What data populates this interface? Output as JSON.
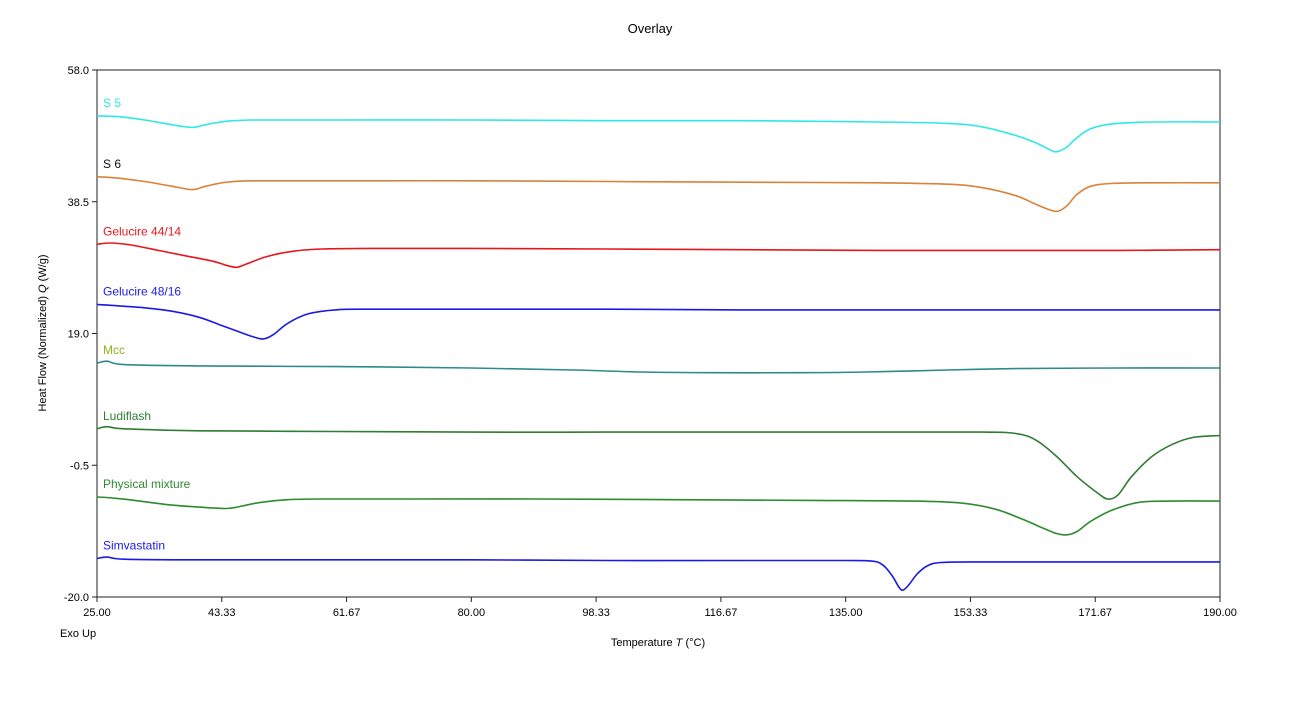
{
  "chart_data": {
    "type": "line",
    "title": "Overlay",
    "xlabel": "Temperature",
    "xlabel_symbol": "T",
    "xlabel_unit": "(°C)",
    "ylabel": "Heat Flow (Normalized)",
    "ylabel_symbol": "Q",
    "ylabel_unit": "(W/g)",
    "corner_note": "Exo Up",
    "xlim": [
      25.0,
      190.0
    ],
    "ylim": [
      -20.0,
      58.0
    ],
    "x_ticks": [
      "25.00",
      "43.33",
      "61.67",
      "80.00",
      "98.33",
      "116.67",
      "135.00",
      "153.33",
      "171.67",
      "190.00"
    ],
    "y_ticks": [
      "58.0",
      "38.5",
      "19.0",
      "-0.5",
      "-20.0"
    ],
    "grid": false,
    "legend": "inline labels",
    "series": [
      {
        "name": "S 5",
        "color": "#2ee8e8",
        "points": [
          [
            25,
            51.2
          ],
          [
            28,
            51.1
          ],
          [
            32,
            50.6
          ],
          [
            36,
            49.9
          ],
          [
            39,
            49.5
          ],
          [
            41,
            49.9
          ],
          [
            44,
            50.4
          ],
          [
            48,
            50.6
          ],
          [
            60,
            50.6
          ],
          [
            80,
            50.6
          ],
          [
            100,
            50.5
          ],
          [
            120,
            50.5
          ],
          [
            140,
            50.3
          ],
          [
            150,
            50.1
          ],
          [
            155,
            49.6
          ],
          [
            160,
            48.3
          ],
          [
            163,
            47.2
          ],
          [
            165,
            46.2
          ],
          [
            166,
            45.9
          ],
          [
            167.5,
            46.6
          ],
          [
            169,
            48.0
          ],
          [
            171,
            49.3
          ],
          [
            174,
            50.0
          ],
          [
            180,
            50.3
          ],
          [
            190,
            50.3
          ]
        ]
      },
      {
        "name": "S 6",
        "color": "#d9823a",
        "points": [
          [
            25,
            42.2
          ],
          [
            28,
            42.0
          ],
          [
            32,
            41.5
          ],
          [
            36,
            40.8
          ],
          [
            39,
            40.3
          ],
          [
            41,
            40.8
          ],
          [
            44,
            41.4
          ],
          [
            48,
            41.6
          ],
          [
            60,
            41.6
          ],
          [
            80,
            41.6
          ],
          [
            100,
            41.5
          ],
          [
            120,
            41.4
          ],
          [
            140,
            41.3
          ],
          [
            150,
            41.1
          ],
          [
            155,
            40.6
          ],
          [
            160,
            39.4
          ],
          [
            163,
            38.1
          ],
          [
            165,
            37.3
          ],
          [
            166.2,
            37.1
          ],
          [
            167.5,
            37.9
          ],
          [
            169,
            39.6
          ],
          [
            171,
            40.8
          ],
          [
            174,
            41.2
          ],
          [
            180,
            41.3
          ],
          [
            190,
            41.3
          ]
        ]
      },
      {
        "name": "Gelucire 44/14",
        "color": "#e8161b",
        "points": [
          [
            25,
            32.2
          ],
          [
            27,
            32.4
          ],
          [
            30,
            32.1
          ],
          [
            34,
            31.3
          ],
          [
            38,
            30.5
          ],
          [
            42,
            29.7
          ],
          [
            44,
            29.1
          ],
          [
            45.5,
            28.8
          ],
          [
            47,
            29.3
          ],
          [
            50,
            30.4
          ],
          [
            54,
            31.2
          ],
          [
            58,
            31.5
          ],
          [
            65,
            31.6
          ],
          [
            80,
            31.6
          ],
          [
            100,
            31.5
          ],
          [
            120,
            31.4
          ],
          [
            140,
            31.3
          ],
          [
            160,
            31.3
          ],
          [
            175,
            31.3
          ],
          [
            190,
            31.4
          ]
        ]
      },
      {
        "name": "Gelucire 48/16",
        "color": "#1a1ae6",
        "points": [
          [
            25,
            23.3
          ],
          [
            28,
            23.1
          ],
          [
            32,
            22.8
          ],
          [
            36,
            22.3
          ],
          [
            40,
            21.4
          ],
          [
            43,
            20.3
          ],
          [
            46,
            19.2
          ],
          [
            48,
            18.5
          ],
          [
            49.5,
            18.2
          ],
          [
            51,
            18.9
          ],
          [
            53,
            20.5
          ],
          [
            56,
            21.9
          ],
          [
            60,
            22.5
          ],
          [
            65,
            22.6
          ],
          [
            80,
            22.6
          ],
          [
            100,
            22.6
          ],
          [
            120,
            22.5
          ],
          [
            140,
            22.5
          ],
          [
            160,
            22.5
          ],
          [
            175,
            22.5
          ],
          [
            190,
            22.5
          ]
        ]
      },
      {
        "name": "Mcc",
        "color": "#2e8a8a",
        "points": [
          [
            25,
            14.6
          ],
          [
            26.5,
            14.9
          ],
          [
            29,
            14.4
          ],
          [
            40,
            14.2
          ],
          [
            60,
            14.1
          ],
          [
            80,
            13.9
          ],
          [
            95,
            13.6
          ],
          [
            105,
            13.3
          ],
          [
            116,
            13.2
          ],
          [
            128,
            13.2
          ],
          [
            138,
            13.3
          ],
          [
            150,
            13.6
          ],
          [
            160,
            13.8
          ],
          [
            175,
            13.9
          ],
          [
            190,
            13.9
          ]
        ]
      },
      {
        "name": "Ludiflash",
        "color": "#2e7d32",
        "points": [
          [
            25,
            4.9
          ],
          [
            26.5,
            5.2
          ],
          [
            29,
            4.9
          ],
          [
            40,
            4.6
          ],
          [
            60,
            4.5
          ],
          [
            80,
            4.4
          ],
          [
            100,
            4.4
          ],
          [
            120,
            4.4
          ],
          [
            140,
            4.4
          ],
          [
            155,
            4.4
          ],
          [
            160,
            4.2
          ],
          [
            163,
            3.2
          ],
          [
            166,
            0.8
          ],
          [
            169,
            -2.2
          ],
          [
            172,
            -4.6
          ],
          [
            173.5,
            -5.5
          ],
          [
            175,
            -4.9
          ],
          [
            177,
            -2.2
          ],
          [
            180,
            0.8
          ],
          [
            183,
            2.6
          ],
          [
            186,
            3.6
          ],
          [
            190,
            3.9
          ]
        ]
      },
      {
        "name": "Physical mixture",
        "color": "#2e8b2e",
        "points": [
          [
            25,
            -5.2
          ],
          [
            28,
            -5.4
          ],
          [
            32,
            -5.9
          ],
          [
            36,
            -6.4
          ],
          [
            40,
            -6.7
          ],
          [
            44,
            -6.9
          ],
          [
            46,
            -6.6
          ],
          [
            49,
            -6.0
          ],
          [
            53,
            -5.6
          ],
          [
            58,
            -5.5
          ],
          [
            70,
            -5.5
          ],
          [
            90,
            -5.5
          ],
          [
            110,
            -5.6
          ],
          [
            130,
            -5.7
          ],
          [
            145,
            -5.8
          ],
          [
            152,
            -6.1
          ],
          [
            157,
            -7.0
          ],
          [
            161,
            -8.5
          ],
          [
            164,
            -9.8
          ],
          [
            166,
            -10.6
          ],
          [
            167.5,
            -10.8
          ],
          [
            169,
            -10.3
          ],
          [
            171,
            -8.8
          ],
          [
            174,
            -7.2
          ],
          [
            178,
            -6.0
          ],
          [
            183,
            -5.8
          ],
          [
            190,
            -5.8
          ]
        ]
      },
      {
        "name": "Simvastatin",
        "color": "#1a1ae6",
        "points": [
          [
            25,
            -14.3
          ],
          [
            26.5,
            -14.1
          ],
          [
            29,
            -14.4
          ],
          [
            40,
            -14.5
          ],
          [
            60,
            -14.5
          ],
          [
            80,
            -14.5
          ],
          [
            100,
            -14.6
          ],
          [
            120,
            -14.6
          ],
          [
            135,
            -14.6
          ],
          [
            139,
            -14.7
          ],
          [
            140.5,
            -15.3
          ],
          [
            141.8,
            -16.8
          ],
          [
            142.8,
            -18.5
          ],
          [
            143.4,
            -19.0
          ],
          [
            144.2,
            -18.3
          ],
          [
            145.5,
            -16.6
          ],
          [
            147,
            -15.4
          ],
          [
            149,
            -14.9
          ],
          [
            155,
            -14.8
          ],
          [
            170,
            -14.8
          ],
          [
            190,
            -14.8
          ]
        ]
      }
    ]
  }
}
